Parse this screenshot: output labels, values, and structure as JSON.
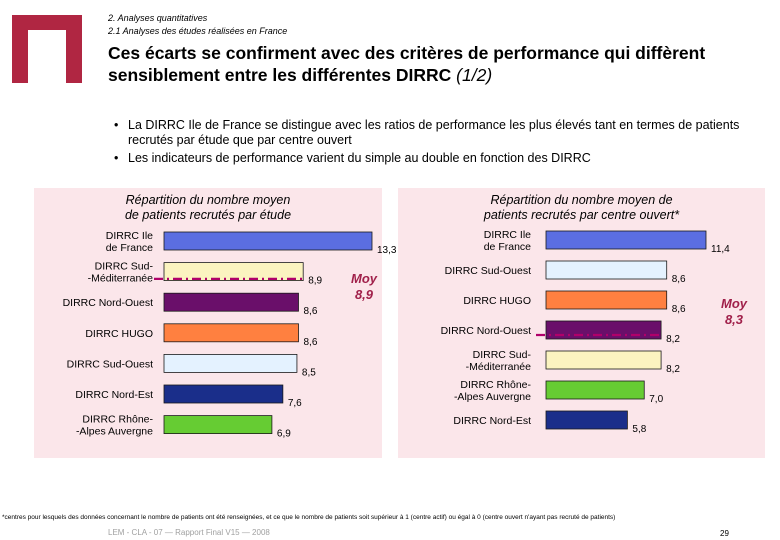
{
  "breadcrumb": {
    "line1": "2. Analyses quantitatives",
    "line2": "2.1 Analyses des études réalisées en France"
  },
  "title": {
    "main": "Ces écarts se confirment avec des critères de performance qui diffèrent sensiblement entre les différentes DIRRC",
    "suffix": "(1/2)"
  },
  "bullets": [
    "La DIRRC Ile de France se distingue avec les ratios de performance les plus élevés tant en termes de patients recrutés par étude que par centre ouvert",
    "Les indicateurs de performance varient du simple au double en fonction des DIRRC"
  ],
  "colors": {
    "brand": "#b02642",
    "panel_bg": "#fbe6ea",
    "average": "#a0204a",
    "average_line": "#b0006a"
  },
  "chart_data": [
    {
      "type": "bar",
      "orientation": "horizontal",
      "title": "Répartition du nombre moyen de patients recrutés par étude",
      "categories": [
        "DIRRC Ile de France",
        "DIRRC Sud-Méditerranée",
        "DIRRC Nord-Ouest",
        "DIRRC HUGO",
        "DIRRC Sud-Ouest",
        "DIRRC Nord-Est",
        "DIRRC Rhône-Alpes Auvergne"
      ],
      "values": [
        13.3,
        8.9,
        8.6,
        8.6,
        8.5,
        7.6,
        6.9
      ],
      "value_labels": [
        "13,3",
        "8,9",
        "8,6",
        "8,6",
        "8,5",
        "7,6",
        "6,9"
      ],
      "bar_colors": [
        "#5b6ee1",
        "#fbf3c0",
        "#6a0f6a",
        "#ff8040",
        "#e4f2ff",
        "#1a2e8a",
        "#66cc33"
      ],
      "average": {
        "label": "Moy",
        "value_label": "8,9",
        "value": 8.9
      },
      "xlim": [
        0,
        13.3
      ]
    },
    {
      "type": "bar",
      "orientation": "horizontal",
      "title": "Répartition du nombre moyen de patients recrutés par centre ouvert*",
      "categories": [
        "DIRRC Ile de France",
        "DIRRC Sud-Ouest",
        "DIRRC HUGO",
        "DIRRC Nord-Ouest",
        "DIRRC Sud-Méditerranée",
        "DIRRC Rhône-Alpes Auvergne",
        "DIRRC Nord-Est"
      ],
      "values": [
        11.4,
        8.6,
        8.6,
        8.2,
        8.2,
        7.0,
        5.8
      ],
      "value_labels": [
        "11,4",
        "8,6",
        "8,6",
        "8,2",
        "8,2",
        "7,0",
        "5,8"
      ],
      "bar_colors": [
        "#5b6ee1",
        "#e4f2ff",
        "#ff8040",
        "#6a0f6a",
        "#fbf3c0",
        "#66cc33",
        "#1a2e8a"
      ],
      "average": {
        "label": "Moy",
        "value_label": "8,3",
        "value": 8.3
      },
      "xlim": [
        0,
        11.4
      ]
    }
  ],
  "footnote": "*centres pour lesquels des données concernant le nombre de patients ont été renseignées, et ce que le nombre de patients soit supérieur à 1 (centre actif) ou égal à 0 (centre ouvert n'ayant pas recruté de patients)",
  "footer": "LEM - CLA - 07 — Rapport Final V15 — 2008",
  "page_number": "29"
}
